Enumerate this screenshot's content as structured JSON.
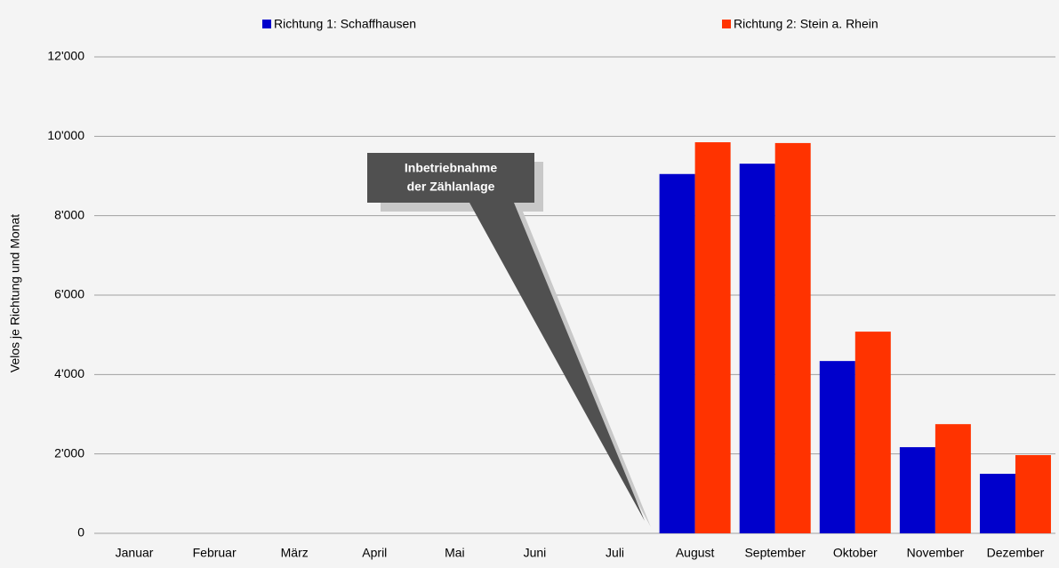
{
  "chart_data": {
    "type": "bar",
    "y_label": "Velos je Richtung und Monat",
    "annotation": [
      "Inbetriebnahme",
      "der Zählanlage"
    ],
    "categories": [
      "Januar",
      "Februar",
      "März",
      "April",
      "Mai",
      "Juni",
      "Juli",
      "August",
      "September",
      "Oktober",
      "November",
      "Dezember"
    ],
    "series": [
      {
        "name": "Richtung 1: Schaffhausen",
        "color": "#0000cc",
        "values": [
          null,
          null,
          null,
          null,
          null,
          null,
          null,
          9050,
          9310,
          4340,
          2170,
          1500
        ]
      },
      {
        "name": "Richtung 2: Stein a. Rhein",
        "color": "#ff3300",
        "values": [
          null,
          null,
          null,
          null,
          null,
          null,
          null,
          9850,
          9830,
          5080,
          2750,
          1970
        ]
      }
    ],
    "ylim": [
      0,
      12000
    ],
    "yticks": [
      {
        "value": 0,
        "label": "0"
      },
      {
        "value": 2000,
        "label": "2'000"
      },
      {
        "value": 4000,
        "label": "4'000"
      },
      {
        "value": 6000,
        "label": "6'000"
      },
      {
        "value": 8000,
        "label": "8'000"
      },
      {
        "value": 10000,
        "label": "10'000"
      },
      {
        "value": 12000,
        "label": "12'000"
      }
    ],
    "grid": true
  }
}
